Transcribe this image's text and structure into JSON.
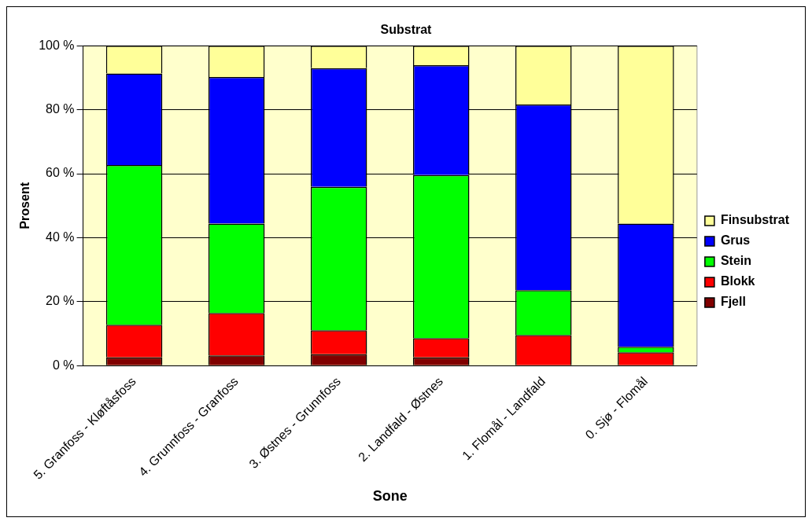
{
  "chart_data": {
    "type": "bar",
    "title": "Substrat",
    "xlabel": "Sone",
    "ylabel": "Prosent",
    "stacked": true,
    "categories": [
      "5. Granfoss - Kløftåsfoss",
      "4. Grunnfoss - Granfoss",
      "3. Østnes - Grunnfoss",
      "2. Landfald - Østnes",
      "1. Flomål - Landfald",
      "0. Sjø - Flomål"
    ],
    "series": [
      {
        "name": "Fjell",
        "color": "#800000",
        "values": [
          2.6,
          3.2,
          3.6,
          2.6,
          0,
          0
        ]
      },
      {
        "name": "Blokk",
        "color": "#ff0000",
        "values": [
          10.2,
          13.3,
          7.5,
          6.0,
          9.6,
          4.2
        ]
      },
      {
        "name": "Stein",
        "color": "#00ff00",
        "values": [
          49.9,
          27.9,
          44.8,
          51.0,
          14.0,
          1.7
        ]
      },
      {
        "name": "Grus",
        "color": "#0000ff",
        "values": [
          28.6,
          45.8,
          37.1,
          34.3,
          58.0,
          38.5
        ]
      },
      {
        "name": "Finsubstrat",
        "color": "#ffff99",
        "values": [
          8.7,
          9.8,
          7.0,
          6.1,
          18.4,
          55.6
        ]
      }
    ],
    "ylim": [
      0,
      100
    ],
    "yticks": [
      {
        "value": 0,
        "label": "0 %"
      },
      {
        "value": 20,
        "label": "20 %"
      },
      {
        "value": 40,
        "label": "40 %"
      },
      {
        "value": 60,
        "label": "60 %"
      },
      {
        "value": 80,
        "label": "80 %"
      },
      {
        "value": 100,
        "label": "100 %"
      }
    ],
    "grid": "y",
    "legend": "right"
  }
}
